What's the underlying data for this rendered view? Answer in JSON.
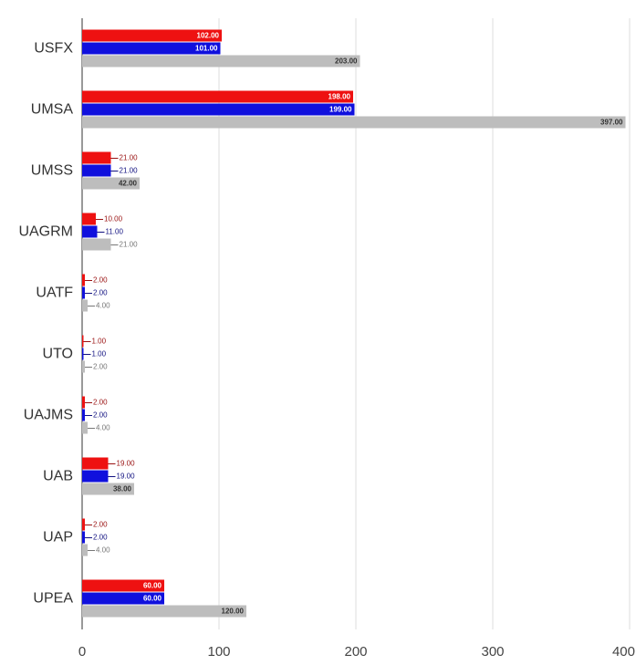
{
  "chart_data": {
    "type": "bar",
    "orientation": "horizontal",
    "categories": [
      "USFX",
      "UMSA",
      "UMSS",
      "UAGRM",
      "UATF",
      "UTO",
      "UAJMS",
      "UAB",
      "UAP",
      "UPEA"
    ],
    "series": [
      {
        "color": "#ee1111",
        "label_color": "#991111",
        "values": [
          102,
          198,
          21,
          10,
          2,
          1,
          2,
          19,
          2,
          60
        ],
        "value_labels": [
          "102.00",
          "198.00",
          "21.00",
          "10.00",
          "2.00",
          "1.00",
          "2.00",
          "19.00",
          "2.00",
          "60.00"
        ]
      },
      {
        "color": "#1010dd",
        "label_color": "#101080",
        "values": [
          101,
          199,
          21,
          11,
          2,
          1,
          2,
          19,
          2,
          60
        ],
        "value_labels": [
          "101.00",
          "199.00",
          "21.00",
          "11.00",
          "2.00",
          "1.00",
          "2.00",
          "19.00",
          "2.00",
          "60.00"
        ]
      },
      {
        "color": "#bdbdbd",
        "label_color": "#777777",
        "values": [
          203,
          397,
          42,
          21,
          4,
          2,
          4,
          38,
          4,
          120
        ],
        "value_labels": [
          "203.00",
          "397.00",
          "42.00",
          "21.00",
          "4.00",
          "2.00",
          "4.00",
          "38.00",
          "4.00",
          "120.00"
        ]
      }
    ],
    "xlim": [
      0,
      400
    ],
    "xticks": [
      0,
      100,
      200,
      300,
      400
    ],
    "grid": true
  }
}
